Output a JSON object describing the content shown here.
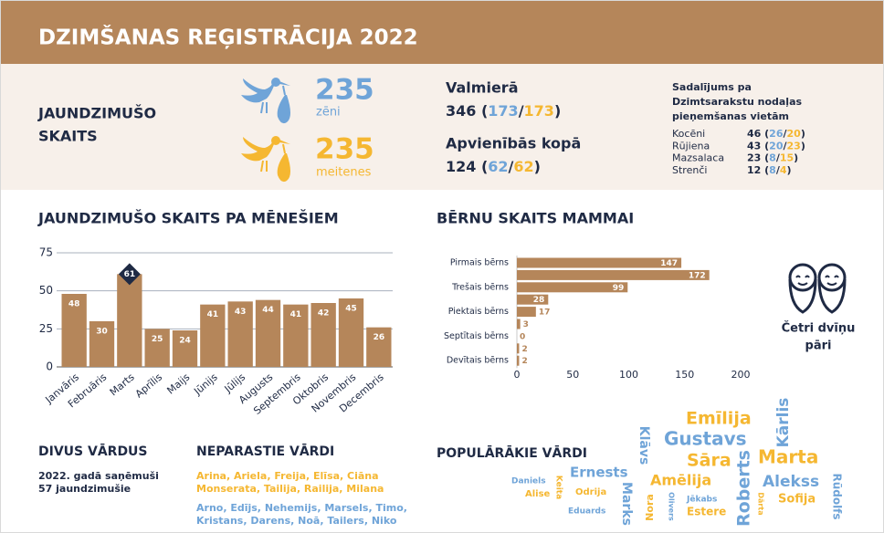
{
  "header": {
    "title": "DZIMŠANAS REĢISTRĀCIJA 2022"
  },
  "summary": {
    "label_lines": [
      "JAUNDZIMUŠO",
      "SKAITS"
    ],
    "boys": {
      "count": "235",
      "label": "zēni",
      "color": "#6fa4d8"
    },
    "girls": {
      "count": "235",
      "label": "meitenes",
      "color": "#f5b731"
    }
  },
  "locations": [
    {
      "title": "Valmierā",
      "parts": [
        {
          "text": "346  (",
          "color": "#1f2a44"
        },
        {
          "text": "173",
          "color": "#6fa4d8"
        },
        {
          "text": "/",
          "color": "#1f2a44"
        },
        {
          "text": "173",
          "color": "#f5b731"
        },
        {
          "text": ")",
          "color": "#1f2a44"
        }
      ]
    },
    {
      "title": "Apvienībās kopā",
      "parts": [
        {
          "text": "124  (",
          "color": "#1f2a44"
        },
        {
          "text": "62",
          "color": "#6fa4d8"
        },
        {
          "text": "/",
          "color": "#1f2a44"
        },
        {
          "text": "62",
          "color": "#f5b731"
        },
        {
          "text": ")",
          "color": "#1f2a44"
        }
      ]
    }
  ],
  "districts": {
    "title_lines": [
      "Sadalījums pa",
      "Dzimtsarakstu nodaļas",
      "pieņemšanas vietām"
    ],
    "rows": [
      {
        "name": "Kocēni",
        "parts": [
          {
            "text": "46 (",
            "color": "#1f2a44"
          },
          {
            "text": "26",
            "color": "#6fa4d8"
          },
          {
            "text": "/",
            "color": "#1f2a44"
          },
          {
            "text": "20",
            "color": "#f5b731"
          },
          {
            "text": ")",
            "color": "#1f2a44"
          }
        ]
      },
      {
        "name": "Rūjiena",
        "parts": [
          {
            "text": "43 (",
            "color": "#1f2a44"
          },
          {
            "text": "20",
            "color": "#6fa4d8"
          },
          {
            "text": "/",
            "color": "#1f2a44"
          },
          {
            "text": "23",
            "color": "#f5b731"
          },
          {
            "text": ")",
            "color": "#1f2a44"
          }
        ]
      },
      {
        "name": "Mazsalaca",
        "parts": [
          {
            "text": "23 (",
            "color": "#1f2a44"
          },
          {
            "text": "8",
            "color": "#6fa4d8"
          },
          {
            "text": "/",
            "color": "#1f2a44"
          },
          {
            "text": "15",
            "color": "#f5b731"
          },
          {
            "text": ")",
            "color": "#1f2a44"
          }
        ]
      },
      {
        "name": "Strenči",
        "parts": [
          {
            "text": "12 (",
            "color": "#1f2a44"
          },
          {
            "text": "8",
            "color": "#6fa4d8"
          },
          {
            "text": "/",
            "color": "#1f2a44"
          },
          {
            "text": "4",
            "color": "#f5b731"
          },
          {
            "text": ")",
            "color": "#1f2a44"
          }
        ]
      }
    ]
  },
  "chart_data": [
    {
      "type": "bar",
      "title": "JAUNDZIMUŠO SKAITS PA MĒNEŠIEM",
      "categories": [
        "Janvāris",
        "Februāris",
        "Marts",
        "Aprīlis",
        "Maijs",
        "Jūnijs",
        "Jūlijs",
        "Augusts",
        "Septembris",
        "Oktobris",
        "Novembris",
        "Decembris"
      ],
      "values": [
        48,
        30,
        61,
        25,
        24,
        41,
        43,
        44,
        41,
        42,
        45,
        26
      ],
      "color": "#b5865a",
      "highlight_color": "#1f2a44",
      "ylim": [
        0,
        75
      ],
      "yticks": [
        0,
        25,
        50,
        75
      ],
      "grid": true
    },
    {
      "type": "hbar",
      "title": "BĒRNU SKAITS MAMMAI",
      "categories": [
        "Pirmais bērns",
        null,
        "Trešais bērns",
        null,
        "Piektais bērns",
        null,
        "Septītais bērns",
        null,
        "Devītais bērns"
      ],
      "values": [
        147,
        172,
        99,
        28,
        17,
        3,
        0,
        2,
        2
      ],
      "color": "#b5865a",
      "xlim": [
        0,
        200
      ],
      "xticks": [
        0,
        50,
        100,
        150,
        200
      ],
      "grid": false
    }
  ],
  "twins": {
    "label_lines": [
      "Četri dvīņu",
      "pāri"
    ]
  },
  "double_names": {
    "title": "DIVUS VĀRDUS",
    "text_lines": [
      "2022. gadā saņēmuši",
      "57 jaundzimušie"
    ]
  },
  "unusual_names": {
    "title": "NEPARASTIE VĀRDI",
    "girls": {
      "lines": [
        "Arina, Ariela, Freija, Elīsa, Ciāna",
        "Monserata, Tailija, Railija, Milana"
      ],
      "color": "#f5b731"
    },
    "boys": {
      "lines": [
        "Arno, Edījs, Nehemijs, Marsels, Timo,",
        "Kristans, Darens, Noā, Tailers, Niko"
      ],
      "color": "#6fa4d8"
    }
  },
  "popular_names": {
    "title": "POPULĀRĀKIE VĀRDI",
    "words": [
      {
        "text": "Emīlija",
        "color": "#f5b731"
      },
      {
        "text": "Kārlis",
        "color": "#6fa4d8"
      },
      {
        "text": "Klāvs",
        "color": "#6fa4d8"
      },
      {
        "text": "Gustavs",
        "color": "#6fa4d8"
      },
      {
        "text": "Sāra",
        "color": "#f5b731"
      },
      {
        "text": "Marta",
        "color": "#f5b731"
      },
      {
        "text": "Ernests",
        "color": "#6fa4d8"
      },
      {
        "text": "Amēlija",
        "color": "#f5b731"
      },
      {
        "text": "Roberts",
        "color": "#6fa4d8"
      },
      {
        "text": "Alekss",
        "color": "#6fa4d8"
      },
      {
        "text": "Rūdolfs",
        "color": "#6fa4d8"
      },
      {
        "text": "Daniels",
        "color": "#6fa4d8"
      },
      {
        "text": "Keita",
        "color": "#f5b731"
      },
      {
        "text": "Alise",
        "color": "#f5b731"
      },
      {
        "text": "Odrija",
        "color": "#f5b731"
      },
      {
        "text": "Marks",
        "color": "#6fa4d8"
      },
      {
        "text": "Nora",
        "color": "#f5b731"
      },
      {
        "text": "Olivers",
        "color": "#6fa4d8"
      },
      {
        "text": "Jēkabs",
        "color": "#6fa4d8"
      },
      {
        "text": "Dārta",
        "color": "#f5b731"
      },
      {
        "text": "Sofija",
        "color": "#f5b731"
      },
      {
        "text": "Eduards",
        "color": "#6fa4d8"
      },
      {
        "text": "Estere",
        "color": "#f5b731"
      }
    ]
  }
}
